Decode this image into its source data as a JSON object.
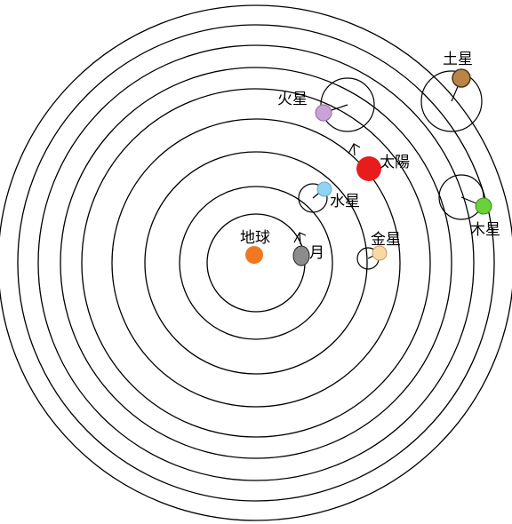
{
  "diagram": {
    "bodies": {
      "earth": {
        "label": "地球",
        "color": "#f07820"
      },
      "moon": {
        "label": "月",
        "color": "#8c8c8c"
      },
      "mercury": {
        "label": "水星",
        "color": "#8fd3f5"
      },
      "venus": {
        "label": "金星",
        "color": "#f8d9a6"
      },
      "sun": {
        "label": "太陽",
        "color": "#e81c1c"
      },
      "mars": {
        "label": "火星",
        "color": "#c9a3d8"
      },
      "jupiter": {
        "label": "木星",
        "color": "#6ad13a"
      },
      "saturn": {
        "label": "土星",
        "color": "#b98446"
      }
    }
  }
}
